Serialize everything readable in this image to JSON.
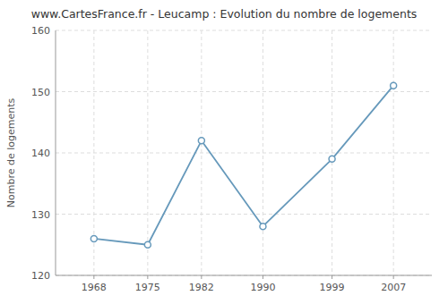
{
  "chart_data": {
    "type": "line",
    "title": "www.CartesFrance.fr - Leucamp : Evolution du nombre de logements",
    "ylabel": "Nombre de logements",
    "x": [
      1968,
      1975,
      1982,
      1990,
      1999,
      2007
    ],
    "values": [
      126,
      125,
      142,
      128,
      139,
      151
    ],
    "color": "#6699bb",
    "marker": "circle",
    "xlim": [
      1963,
      2012
    ],
    "ylim": [
      120,
      160
    ],
    "xticks": [
      1968,
      1975,
      1982,
      1990,
      1999,
      2007
    ],
    "yticks": [
      120,
      130,
      140,
      150,
      160
    ],
    "grid": true
  }
}
